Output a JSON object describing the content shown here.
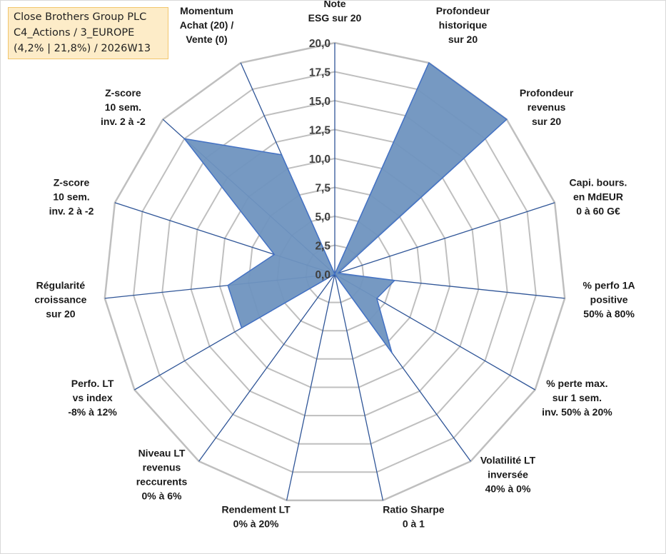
{
  "info_box": {
    "line1": "Close Brothers Group PLC",
    "line2": "C4_Actions / 3_EUROPE",
    "line3": "(4,2% | 21,8%) / 2026W13"
  },
  "colors": {
    "fill": "#6f93bf",
    "stroke": "#4472c4",
    "grid": "#bfbfbf",
    "axis": "#2f5597"
  },
  "chart_data": {
    "type": "radar",
    "title": "",
    "rmin": 0,
    "rmax": 20,
    "ticks": [
      "0,0",
      "2,5",
      "5,0",
      "7,5",
      "10,0",
      "12,5",
      "15,0",
      "17,5",
      "20,0"
    ],
    "axes": [
      {
        "label": [
          "Note",
          "ESG sur 20"
        ],
        "value": 0
      },
      {
        "label": [
          "Profondeur",
          "historique",
          "sur 20"
        ],
        "value": 20
      },
      {
        "label": [
          "Profondeur",
          "revenus",
          "sur 20"
        ],
        "value": 20
      },
      {
        "label": [
          "Capi. bours.",
          "en MdEUR",
          "0 à 60 G€"
        ],
        "value": 0.3
      },
      {
        "label": [
          "% perfo 1A",
          "positive",
          "50% à 80%"
        ],
        "value": 5.2
      },
      {
        "label": [
          "% perte max.",
          "sur 1 sem.",
          "inv. 50% à 20%"
        ],
        "value": 4.2
      },
      {
        "label": [
          "Volatilité LT",
          "inversée",
          "40% à 0%"
        ],
        "value": 8.4
      },
      {
        "label": [
          "Ratio Sharpe",
          "0 à 1"
        ],
        "value": 0
      },
      {
        "label": [
          "Rendement LT",
          "0% à 20%"
        ],
        "value": 0
      },
      {
        "label": [
          "Niveau LT",
          "revenus",
          "reccurents",
          "0% à 6%"
        ],
        "value": 0
      },
      {
        "label": [
          "Perfo. LT",
          "vs index",
          "-8% à 12%"
        ],
        "value": 9.3
      },
      {
        "label": [
          "Régularité",
          "croissance",
          "sur 20"
        ],
        "value": 9.3
      },
      {
        "label": [
          "Z-score",
          "10 sem.",
          "inv. 2 à -2"
        ],
        "value": 5.5
      },
      {
        "label": [
          "Z-score",
          "10 sem.",
          "inv. 2 à -2"
        ],
        "value": 17.5
      },
      {
        "label": [
          "Momentum",
          "Achat (20) /",
          "Vente (0)"
        ],
        "value": 11.3
      }
    ]
  }
}
